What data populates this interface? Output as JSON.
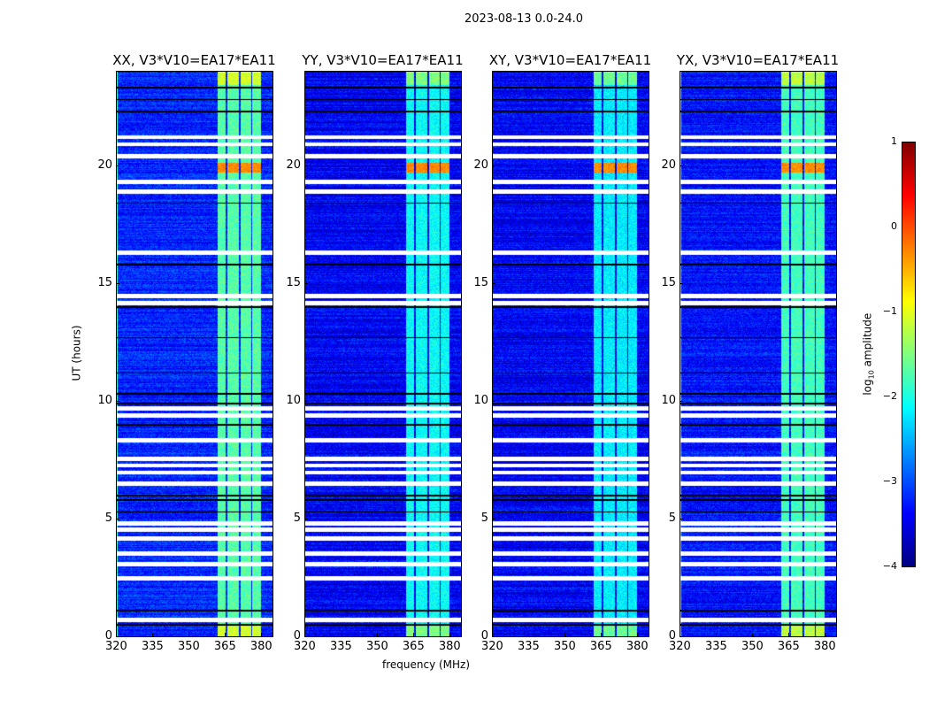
{
  "chart_data": {
    "type": "heatmap",
    "title": "2023-08-13 0.0-24.0",
    "xlabel": "frequency (MHz)",
    "ylabel": "UT (hours)",
    "xlim": [
      320,
      384.8
    ],
    "ylim": [
      0,
      24
    ],
    "xticks": [
      320,
      335,
      350,
      365,
      380
    ],
    "yticks": [
      0,
      5,
      10,
      15,
      20
    ],
    "panels": [
      {
        "title": "XX, V3*V10=EA17*EA11",
        "base": -3.2,
        "band_level": -1.7
      },
      {
        "title": "YY, V3*V10=EA17*EA11",
        "base": -3.4,
        "band_level": -2.1
      },
      {
        "title": "XY, V3*V10=EA17*EA11",
        "base": -3.4,
        "band_level": -2.2
      },
      {
        "title": "YX, V3*V10=EA17*EA11",
        "base": -3.3,
        "band_level": -1.8
      }
    ],
    "bright_band_mhz": [
      362,
      380
    ],
    "flare_hours": [
      19.7,
      20.1
    ],
    "flagged_hours": [
      21.2,
      20.9,
      20.4,
      19.3,
      18.9,
      16.3,
      14.45,
      14.15,
      9.7,
      9.4,
      8.35,
      7.55,
      7.27,
      6.97,
      6.5,
      4.8,
      4.53,
      4.16,
      3.52,
      3.07,
      2.47,
      0.71
    ],
    "gap_hours": [
      23.3,
      22.8,
      22.3,
      18.4,
      15.8,
      14.0,
      12.7,
      11.2,
      10.3,
      9.9,
      9.0,
      6.0,
      5.8,
      5.3,
      1.1,
      0.5
    ],
    "colorbar": {
      "label": "log10 amplitude",
      "label_main": "log",
      "label_sub": "10",
      "label_rest": " amplitude",
      "range": [
        -4,
        1
      ],
      "ticks": [
        "1",
        "0",
        "−1",
        "−2",
        "−3",
        "−4"
      ]
    },
    "colormap": "jet"
  }
}
